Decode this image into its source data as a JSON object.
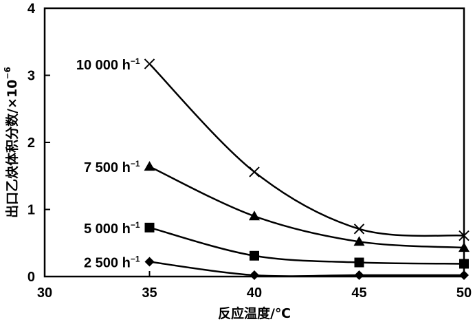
{
  "chart_data": {
    "type": "line",
    "xlabel": "反应温度/℃",
    "ylabel": "出口乙炔体积分数/×10",
    "ylabel_exponent": "−6",
    "xlim": [
      30,
      50
    ],
    "ylim": [
      0,
      4
    ],
    "x_ticks": [
      "30",
      "35",
      "40",
      "45",
      "50"
    ],
    "y_ticks": [
      "0",
      "1",
      "2",
      "3",
      "4"
    ],
    "grid": false,
    "x": [
      35,
      40,
      45,
      50
    ],
    "series": [
      {
        "name": "10 000 h",
        "unit_exp": "−1",
        "marker": "x",
        "values": [
          3.17,
          1.56,
          0.71,
          0.61
        ]
      },
      {
        "name": "7 500 h",
        "unit_exp": "−1",
        "marker": "triangle",
        "values": [
          1.64,
          0.9,
          0.52,
          0.43
        ]
      },
      {
        "name": "5 000 h",
        "unit_exp": "−1",
        "marker": "square",
        "values": [
          0.73,
          0.31,
          0.21,
          0.19
        ]
      },
      {
        "name": "2 500 h",
        "unit_exp": "−1",
        "marker": "diamond",
        "values": [
          0.22,
          0.02,
          0.02,
          0.02
        ]
      }
    ]
  }
}
